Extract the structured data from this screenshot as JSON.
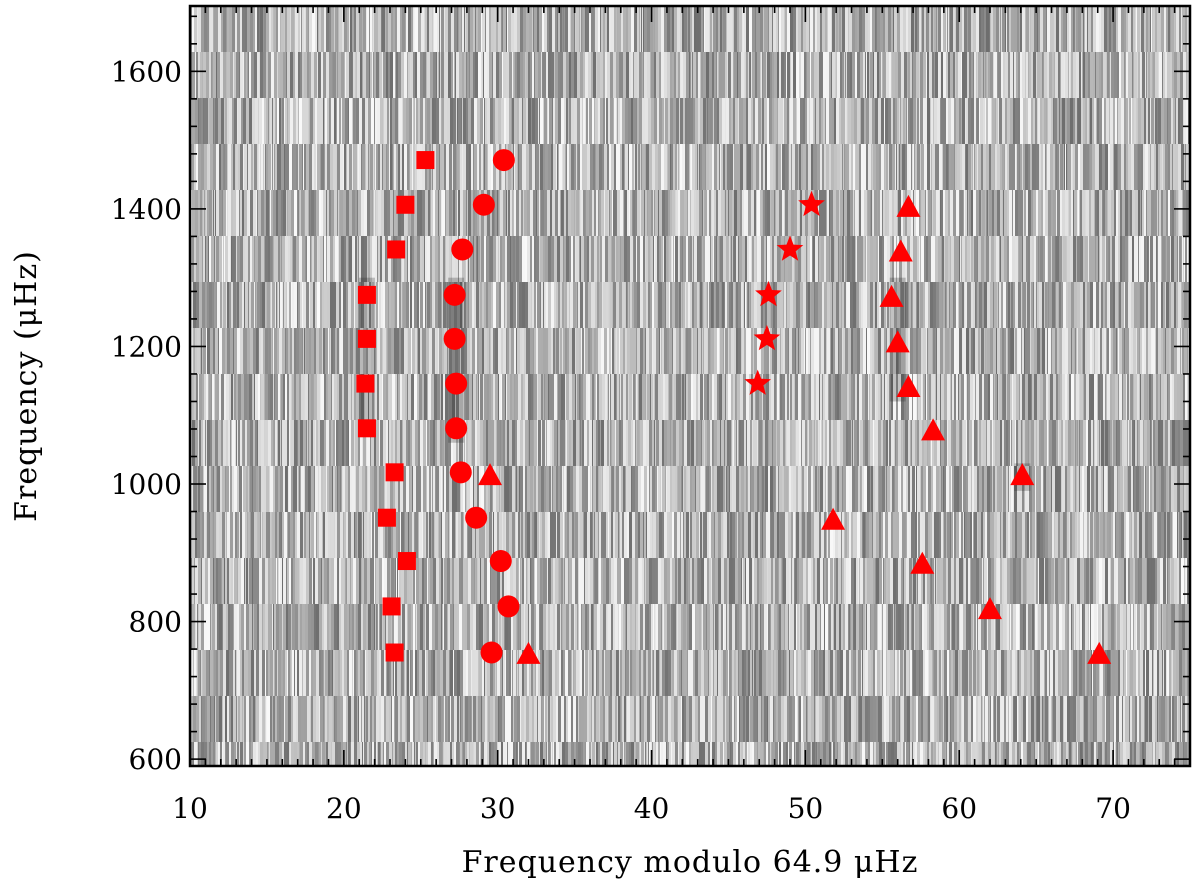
{
  "chart_data": {
    "type": "scatter",
    "background": "grayscale echelle power spectrum",
    "xlabel": "Frequency modulo 64.9 μHz",
    "ylabel": "Frequency (μHz)",
    "xlim": [
      10,
      75
    ],
    "ylim": [
      590,
      1695
    ],
    "x_ticks": [
      "10",
      "20",
      "30",
      "40",
      "50",
      "60",
      "70"
    ],
    "y_ticks": [
      "600",
      "800",
      "1000",
      "1200",
      "1400",
      "1600"
    ],
    "marker_color": "#ff0000",
    "series": [
      {
        "marker": "square",
        "x": [
          23.3,
          23.1,
          24.1,
          22.8,
          23.3,
          21.5,
          21.4,
          21.5,
          21.5,
          23.4,
          24.0,
          25.3
        ],
        "y": [
          755,
          822,
          888,
          951,
          1017,
          1081,
          1146,
          1211,
          1275,
          1341,
          1406,
          1471
        ]
      },
      {
        "marker": "circle",
        "x": [
          29.6,
          30.7,
          30.2,
          28.6,
          27.6,
          27.3,
          27.3,
          27.2,
          27.2,
          27.7,
          29.1,
          30.4
        ],
        "y": [
          755,
          822,
          888,
          951,
          1017,
          1081,
          1146,
          1211,
          1275,
          1341,
          1406,
          1471
        ]
      },
      {
        "marker": "triangle",
        "x": [
          32.0,
          29.5,
          69.1,
          62.0,
          57.6,
          51.8,
          64.1,
          58.3,
          56.7,
          56.0,
          55.6,
          56.2,
          56.7
        ],
        "y": [
          753,
          1013,
          753,
          818,
          884,
          948,
          1013,
          1078,
          1141,
          1206,
          1272,
          1338,
          1403
        ]
      },
      {
        "marker": "star",
        "x": [
          46.9,
          47.5,
          47.6,
          49.0,
          50.4
        ],
        "y": [
          1146,
          1211,
          1275,
          1341,
          1406
        ]
      }
    ]
  }
}
